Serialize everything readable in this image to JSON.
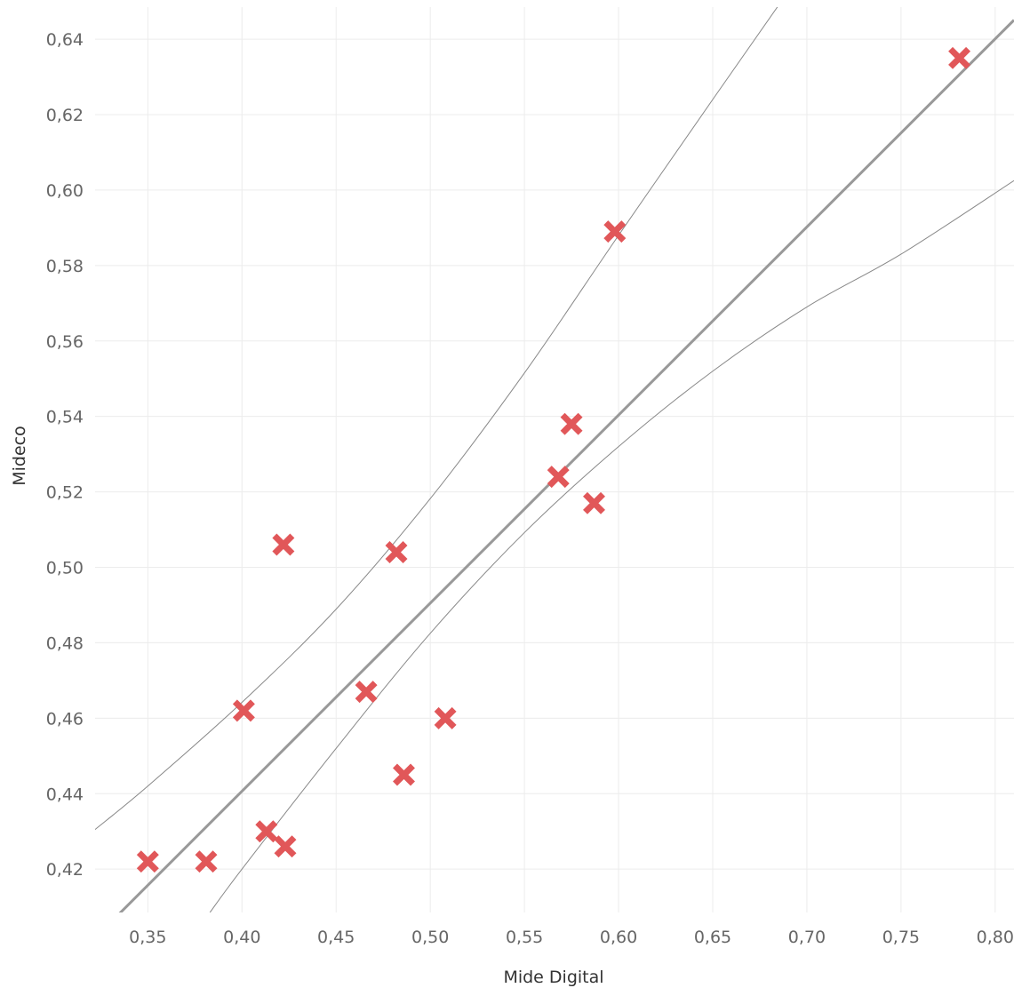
{
  "chart_data": {
    "type": "scatter",
    "xlabel": "Mide Digital",
    "ylabel": "Mideco",
    "xlim": [
      0.322,
      0.81
    ],
    "ylim": [
      0.4085,
      0.6485
    ],
    "grid": true,
    "x_ticks": [
      0.35,
      0.4,
      0.45,
      0.5,
      0.55,
      0.6,
      0.65,
      0.7,
      0.75,
      0.8
    ],
    "x_tick_labels": [
      "0,35",
      "0,40",
      "0,45",
      "0,50",
      "0,55",
      "0,60",
      "0,65",
      "0,70",
      "0,75",
      "0,80"
    ],
    "y_ticks": [
      0.42,
      0.44,
      0.46,
      0.48,
      0.5,
      0.52,
      0.54,
      0.56,
      0.58,
      0.6,
      0.62,
      0.64
    ],
    "y_tick_labels": [
      "0,42",
      "0,44",
      "0,46",
      "0,48",
      "0,50",
      "0,52",
      "0,54",
      "0,56",
      "0,58",
      "0,60",
      "0,62",
      "0,64"
    ],
    "series": [
      {
        "marker": "x",
        "color": "#e15759",
        "points": [
          {
            "x": 0.35,
            "y": 0.422
          },
          {
            "x": 0.381,
            "y": 0.422
          },
          {
            "x": 0.401,
            "y": 0.462
          },
          {
            "x": 0.413,
            "y": 0.43
          },
          {
            "x": 0.423,
            "y": 0.426
          },
          {
            "x": 0.422,
            "y": 0.506
          },
          {
            "x": 0.466,
            "y": 0.467
          },
          {
            "x": 0.482,
            "y": 0.504
          },
          {
            "x": 0.486,
            "y": 0.445
          },
          {
            "x": 0.508,
            "y": 0.46
          },
          {
            "x": 0.568,
            "y": 0.524
          },
          {
            "x": 0.575,
            "y": 0.538
          },
          {
            "x": 0.587,
            "y": 0.517
          },
          {
            "x": 0.598,
            "y": 0.589
          },
          {
            "x": 0.781,
            "y": 0.635
          }
        ]
      }
    ],
    "trend_line": {
      "type": "linear",
      "slope": 0.4986,
      "intercept": 0.2412,
      "color": "#999999"
    },
    "confidence_band": {
      "color": "#888888",
      "upper": [
        {
          "x": 0.322,
          "y": 0.4305
        },
        {
          "x": 0.35,
          "y": 0.442
        },
        {
          "x": 0.4,
          "y": 0.4642
        },
        {
          "x": 0.45,
          "y": 0.4889
        },
        {
          "x": 0.5,
          "y": 0.5182
        },
        {
          "x": 0.55,
          "y": 0.5515
        },
        {
          "x": 0.6,
          "y": 0.588
        },
        {
          "x": 0.65,
          "y": 0.624
        },
        {
          "x": 0.685,
          "y": 0.649
        }
      ],
      "lower": [
        {
          "x": 0.383,
          "y": 0.4085
        },
        {
          "x": 0.4,
          "y": 0.42
        },
        {
          "x": 0.45,
          "y": 0.452
        },
        {
          "x": 0.5,
          "y": 0.4825
        },
        {
          "x": 0.55,
          "y": 0.5092
        },
        {
          "x": 0.6,
          "y": 0.532
        },
        {
          "x": 0.65,
          "y": 0.552
        },
        {
          "x": 0.7,
          "y": 0.569
        },
        {
          "x": 0.75,
          "y": 0.583
        },
        {
          "x": 0.81,
          "y": 0.6025
        }
      ]
    }
  }
}
